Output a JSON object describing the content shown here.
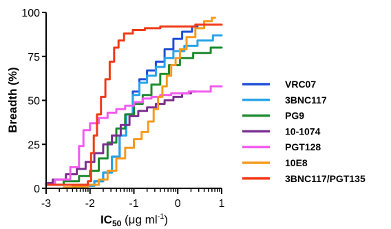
{
  "chart_data": {
    "type": "line",
    "title": "",
    "xlabel": {
      "main": "IC",
      "sub": "50",
      "unit_pre": " (μg ml",
      "unit_sup": "-1",
      "unit_post": ")"
    },
    "ylabel": "Breadth (%)",
    "x_scale": "log10",
    "xlim": [
      -3,
      1
    ],
    "ylim": [
      0,
      100
    ],
    "x_ticks": [
      -3,
      -2,
      -1,
      0,
      1
    ],
    "x_tick_labels": [
      "-3",
      "-2",
      "-1",
      "0",
      "1"
    ],
    "y_ticks": [
      0,
      25,
      50,
      75,
      100
    ],
    "y_tick_labels": [
      "0",
      "25",
      "50",
      "75",
      "100"
    ],
    "grid": false,
    "legend_position": "right",
    "series": [
      {
        "name": "VRC07",
        "color": "#1f4fd6",
        "points": [
          [
            -2.4,
            0.5
          ],
          [
            -2.0,
            1.5
          ],
          [
            -1.8,
            4
          ],
          [
            -1.6,
            9
          ],
          [
            -1.4,
            18
          ],
          [
            -1.25,
            30
          ],
          [
            -1.1,
            42
          ],
          [
            -0.95,
            55
          ],
          [
            -0.8,
            62
          ],
          [
            -0.6,
            67
          ],
          [
            -0.4,
            72
          ],
          [
            -0.2,
            79
          ],
          [
            0.0,
            85
          ],
          [
            0.2,
            89
          ],
          [
            0.45,
            92
          ]
        ]
      },
      {
        "name": "3BNC117",
        "color": "#27a3e8",
        "points": [
          [
            -2.3,
            0.5
          ],
          [
            -2.0,
            1.5
          ],
          [
            -1.8,
            4
          ],
          [
            -1.6,
            9
          ],
          [
            -1.4,
            18
          ],
          [
            -1.25,
            30
          ],
          [
            -1.1,
            42
          ],
          [
            -0.95,
            53
          ],
          [
            -0.8,
            60
          ],
          [
            -0.6,
            64
          ],
          [
            -0.4,
            69
          ],
          [
            -0.2,
            74
          ],
          [
            0.0,
            78
          ],
          [
            0.3,
            81
          ],
          [
            0.6,
            84
          ],
          [
            1.0,
            87
          ]
        ]
      },
      {
        "name": "PG9",
        "color": "#1e8a2e",
        "points": [
          [
            -2.8,
            2
          ],
          [
            -2.4,
            4
          ],
          [
            -2.1,
            7
          ],
          [
            -1.9,
            10
          ],
          [
            -1.7,
            17
          ],
          [
            -1.5,
            26
          ],
          [
            -1.3,
            34
          ],
          [
            -1.1,
            42
          ],
          [
            -0.9,
            48
          ],
          [
            -0.7,
            53
          ],
          [
            -0.5,
            59
          ],
          [
            -0.3,
            65
          ],
          [
            -0.1,
            70
          ],
          [
            0.2,
            74
          ],
          [
            0.5,
            77
          ],
          [
            1.0,
            80
          ]
        ]
      },
      {
        "name": "10-1074",
        "color": "#7a2f8f",
        "points": [
          [
            -3.0,
            3
          ],
          [
            -2.7,
            5
          ],
          [
            -2.4,
            8
          ],
          [
            -2.2,
            11
          ],
          [
            -2.0,
            15
          ],
          [
            -1.8,
            20
          ],
          [
            -1.6,
            25
          ],
          [
            -1.4,
            30
          ],
          [
            -1.2,
            36
          ],
          [
            -1.0,
            41
          ],
          [
            -0.8,
            44
          ],
          [
            -0.6,
            46
          ],
          [
            -0.4,
            48
          ],
          [
            -0.2,
            50
          ],
          [
            0.0,
            52
          ],
          [
            0.2,
            54
          ],
          [
            0.4,
            55
          ]
        ]
      },
      {
        "name": "PGT128",
        "color": "#f25bef",
        "points": [
          [
            -3.0,
            2
          ],
          [
            -2.6,
            5
          ],
          [
            -2.3,
            12
          ],
          [
            -2.2,
            24
          ],
          [
            -2.1,
            33
          ],
          [
            -1.9,
            37
          ],
          [
            -1.7,
            40
          ],
          [
            -1.5,
            43
          ],
          [
            -1.3,
            45
          ],
          [
            -1.1,
            47
          ],
          [
            -0.9,
            49
          ],
          [
            -0.7,
            51
          ],
          [
            -0.5,
            52
          ],
          [
            -0.3,
            53
          ],
          [
            0.0,
            54
          ],
          [
            0.5,
            55
          ],
          [
            1.0,
            58
          ]
        ]
      },
      {
        "name": "10E8",
        "color": "#f59a1f",
        "points": [
          [
            -2.6,
            0.5
          ],
          [
            -2.2,
            1
          ],
          [
            -1.9,
            2
          ],
          [
            -1.7,
            5
          ],
          [
            -1.5,
            10
          ],
          [
            -1.3,
            17
          ],
          [
            -1.1,
            23
          ],
          [
            -0.9,
            28
          ],
          [
            -0.75,
            32
          ],
          [
            -0.6,
            38
          ],
          [
            -0.5,
            45
          ],
          [
            -0.4,
            52
          ],
          [
            -0.3,
            58
          ],
          [
            -0.2,
            64
          ],
          [
            -0.1,
            70
          ],
          [
            0.0,
            74
          ],
          [
            0.1,
            79
          ],
          [
            0.3,
            86
          ],
          [
            0.5,
            91
          ],
          [
            0.7,
            95
          ],
          [
            0.85,
            97
          ]
        ]
      },
      {
        "name": "3BNC117/PGT135",
        "color": "#f03a17",
        "points": [
          [
            -3.0,
            2
          ],
          [
            -2.5,
            2
          ],
          [
            -2.1,
            2
          ],
          [
            -2.0,
            4
          ],
          [
            -1.95,
            20
          ],
          [
            -1.88,
            30
          ],
          [
            -1.8,
            42
          ],
          [
            -1.7,
            52
          ],
          [
            -1.6,
            62
          ],
          [
            -1.5,
            72
          ],
          [
            -1.4,
            80
          ],
          [
            -1.3,
            84
          ],
          [
            -1.15,
            88
          ],
          [
            -0.9,
            90
          ],
          [
            -0.6,
            91
          ],
          [
            -0.2,
            92
          ],
          [
            0.2,
            92
          ],
          [
            0.6,
            93
          ],
          [
            1.0,
            93
          ]
        ]
      }
    ]
  }
}
